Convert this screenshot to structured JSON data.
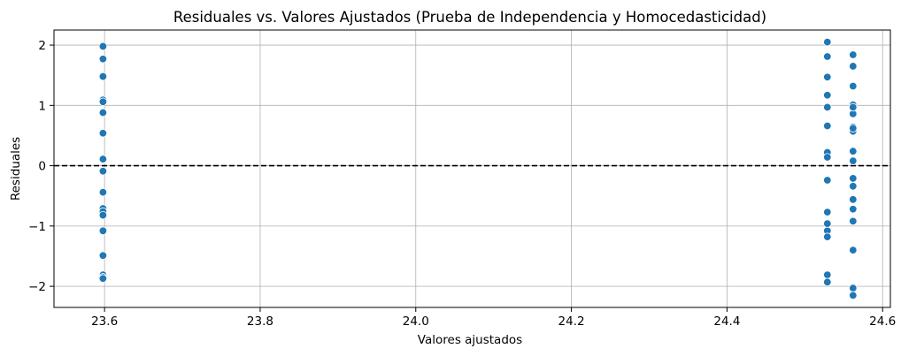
{
  "chart_data": {
    "type": "scatter",
    "title": "Residuales vs. Valores Ajustados (Prueba de Independencia y Homocedasticidad)",
    "xlabel": "Valores ajustados",
    "ylabel": "Residuales",
    "xlim": [
      23.535,
      24.61
    ],
    "ylim": [
      -2.35,
      2.25
    ],
    "x_ticks": [
      23.6,
      23.8,
      24.0,
      24.2,
      24.4,
      24.6
    ],
    "x_tick_labels": [
      "23.6",
      "23.8",
      "24.0",
      "24.2",
      "24.4",
      "24.6"
    ],
    "y_ticks": [
      -2,
      -1,
      0,
      1,
      2
    ],
    "y_tick_labels": [
      "−2",
      "−1",
      "0",
      "1",
      "2"
    ],
    "grid": true,
    "reference_line": {
      "y": 0,
      "style": "dashed",
      "color": "#000000"
    },
    "point_color": "#1f77b4",
    "series": [
      {
        "x": [
          23.598,
          23.598,
          23.598,
          23.598,
          23.598,
          23.598,
          23.598,
          23.598,
          23.598,
          23.598,
          23.598,
          23.598,
          23.598,
          23.598,
          23.598,
          23.598,
          23.598,
          23.598,
          23.598,
          24.529,
          24.529,
          24.529,
          24.529,
          24.529,
          24.529,
          24.529,
          24.529,
          24.529,
          24.529,
          24.529,
          24.529,
          24.529,
          24.529,
          24.529,
          24.529,
          24.529,
          24.562,
          24.562,
          24.562,
          24.562,
          24.562,
          24.562,
          24.562,
          24.562,
          24.562,
          24.562,
          24.562,
          24.562,
          24.562,
          24.562,
          24.562,
          24.562,
          24.562,
          24.562,
          24.562,
          24.562,
          24.562
        ],
        "y": [
          1.98,
          1.77,
          1.48,
          1.09,
          1.06,
          0.88,
          0.54,
          0.1,
          -0.09,
          -0.44,
          -0.71,
          -0.76,
          -0.82,
          -1.08,
          -1.49,
          -1.81,
          -1.85,
          -1.87,
          0.11,
          2.05,
          1.81,
          1.47,
          1.16,
          0.97,
          0.66,
          0.22,
          0.14,
          -0.24,
          -0.77,
          -0.95,
          -1.08,
          -1.18,
          -1.81,
          -1.93,
          -0.96,
          1.17,
          1.84,
          1.65,
          1.32,
          1.01,
          0.86,
          0.64,
          0.57,
          0.24,
          0.08,
          -0.22,
          -0.33,
          -0.56,
          -0.72,
          -0.92,
          -1.4,
          -2.03,
          -2.15,
          0.97,
          0.62,
          -0.21,
          -0.34
        ]
      }
    ]
  }
}
